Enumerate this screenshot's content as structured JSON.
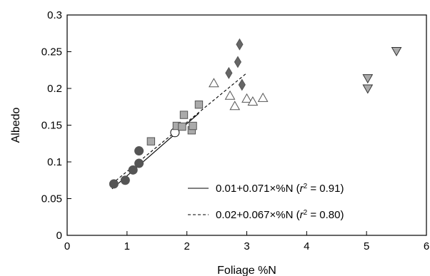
{
  "chart_data": {
    "type": "scatter",
    "xlabel": "Foliage %N",
    "ylabel": "Albedo",
    "xlim": [
      0,
      6
    ],
    "ylim": [
      0,
      0.3
    ],
    "xticks": [
      "0",
      "1",
      "2",
      "3",
      "4",
      "5",
      "6"
    ],
    "yticks": [
      "0",
      "0.05",
      "0.1",
      "0.15",
      "0.2",
      "0.25",
      "0.3"
    ],
    "grid": false,
    "legend_position": "bottom-right",
    "series": [
      {
        "marker": "circle",
        "fill": "#555555",
        "stroke": "#555555",
        "points": [
          [
            0.78,
            0.07
          ],
          [
            0.97,
            0.075
          ],
          [
            1.1,
            0.089
          ],
          [
            1.2,
            0.098
          ],
          [
            1.2,
            0.115
          ]
        ]
      },
      {
        "marker": "circle",
        "fill": "#ffffff",
        "stroke": "#000000",
        "points": [
          [
            1.8,
            0.14
          ]
        ]
      },
      {
        "marker": "square",
        "fill": "#aaaaaa",
        "stroke": "#555555",
        "points": [
          [
            1.4,
            0.128
          ],
          [
            1.83,
            0.149
          ],
          [
            1.92,
            0.148
          ],
          [
            1.95,
            0.164
          ],
          [
            2.08,
            0.143
          ],
          [
            2.1,
            0.149
          ],
          [
            2.2,
            0.178
          ]
        ]
      },
      {
        "marker": "triangle-up",
        "fill": "#ffffff",
        "stroke": "#555555",
        "points": [
          [
            2.45,
            0.207
          ],
          [
            2.72,
            0.19
          ],
          [
            2.8,
            0.176
          ],
          [
            3.0,
            0.186
          ],
          [
            3.1,
            0.182
          ],
          [
            3.27,
            0.187
          ]
        ]
      },
      {
        "marker": "diamond",
        "fill": "#666666",
        "stroke": "#555555",
        "points": [
          [
            2.7,
            0.221
          ],
          [
            2.85,
            0.236
          ],
          [
            2.88,
            0.26
          ],
          [
            2.92,
            0.205
          ]
        ]
      },
      {
        "marker": "triangle-down",
        "fill": "#aaaaaa",
        "stroke": "#333333",
        "points": [
          [
            5.02,
            0.214
          ],
          [
            5.02,
            0.2
          ],
          [
            5.5,
            0.251
          ]
        ]
      }
    ],
    "fit_lines": [
      {
        "label_prefix": "0.01+0.071×%N (",
        "label_r": "r",
        "label_sup": "2",
        "label_value": " = 0.91)",
        "style": "solid",
        "x_range": [
          0.75,
          2.2
        ],
        "intercept": 0.01,
        "slope": 0.071
      },
      {
        "label_prefix": "0.02+0.067×%N (",
        "label_r": "r",
        "label_sup": "2",
        "label_value": " = 0.80)",
        "style": "dashed",
        "x_range": [
          0.75,
          3.0
        ],
        "intercept": 0.02,
        "slope": 0.067
      }
    ]
  }
}
